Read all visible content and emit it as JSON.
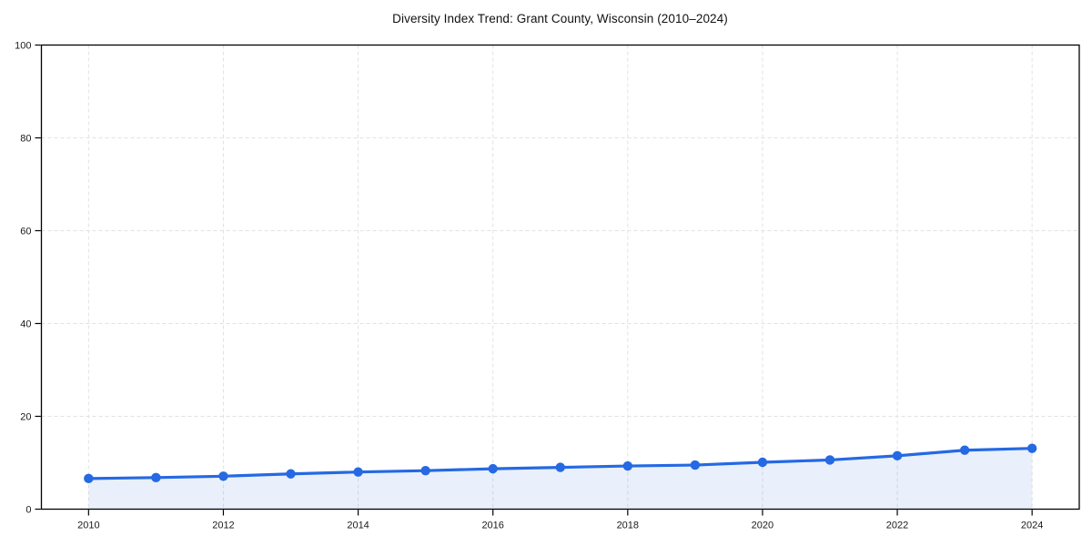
{
  "chart_data": {
    "type": "area",
    "title": "Diversity Index Trend: Grant County, Wisconsin (2010–2024)",
    "series_name": "Diversity Index",
    "x": [
      2010,
      2011,
      2012,
      2013,
      2014,
      2015,
      2016,
      2017,
      2018,
      2019,
      2020,
      2021,
      2022,
      2023,
      2024
    ],
    "values": [
      6.6,
      6.8,
      7.1,
      7.6,
      8.0,
      8.3,
      8.7,
      9.0,
      9.3,
      9.5,
      10.1,
      10.6,
      11.5,
      12.7,
      13.1
    ],
    "xlabel": "",
    "ylabel": "",
    "xlim": [
      2009.3,
      2024.7
    ],
    "ylim": [
      0,
      100
    ],
    "xticks": [
      2010,
      2012,
      2014,
      2016,
      2018,
      2020,
      2022,
      2024
    ],
    "yticks": [
      0,
      20,
      40,
      60,
      80,
      100
    ],
    "grid": "dashed",
    "legend_position": "none",
    "colors": {
      "line": "#2569e3",
      "marker": "#2569e3",
      "fill": "rgba(37,105,227,0.10)",
      "grid": "#e2e2e2",
      "axis_box": "#000000",
      "tick_text": "#1a1a1a",
      "background": "#ffffff"
    }
  }
}
